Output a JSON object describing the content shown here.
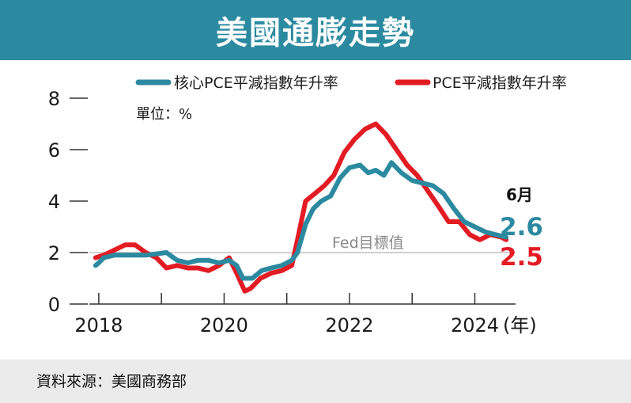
{
  "title": "美國通膨走勢",
  "source": "資料來源：美國商務部",
  "chart_data": {
    "type": "line",
    "unit_label": "單位：%",
    "ylim": [
      0,
      8
    ],
    "yticks": [
      "0",
      "2",
      "4",
      "6",
      "8"
    ],
    "xlim": [
      2017.85,
      2024.65
    ],
    "xtick_labels": [
      "2018",
      "2020",
      "2022",
      "2024"
    ],
    "x_unit_label": "(年)",
    "grid": false,
    "legend_position": "top",
    "reference_line": {
      "label": "Fed目標值",
      "value": 2
    },
    "latest_label": "6月",
    "series": [
      {
        "name": "核心PCE平減指數年升率",
        "color": "#2b8aa0",
        "end_label": "2.6",
        "points": [
          [
            2017.95,
            1.5
          ],
          [
            2018.0,
            1.6
          ],
          [
            2018.08,
            1.8
          ],
          [
            2018.25,
            1.9
          ],
          [
            2018.42,
            1.9
          ],
          [
            2018.58,
            1.9
          ],
          [
            2018.75,
            1.9
          ],
          [
            2018.92,
            1.95
          ],
          [
            2019.08,
            2.0
          ],
          [
            2019.25,
            1.7
          ],
          [
            2019.42,
            1.6
          ],
          [
            2019.58,
            1.7
          ],
          [
            2019.75,
            1.7
          ],
          [
            2019.92,
            1.6
          ],
          [
            2020.08,
            1.7
          ],
          [
            2020.2,
            1.5
          ],
          [
            2020.3,
            1.0
          ],
          [
            2020.45,
            1.0
          ],
          [
            2020.6,
            1.3
          ],
          [
            2020.75,
            1.4
          ],
          [
            2020.92,
            1.5
          ],
          [
            2021.08,
            1.7
          ],
          [
            2021.17,
            2.0
          ],
          [
            2021.3,
            3.1
          ],
          [
            2021.42,
            3.7
          ],
          [
            2021.55,
            4.0
          ],
          [
            2021.7,
            4.2
          ],
          [
            2021.85,
            4.9
          ],
          [
            2022.0,
            5.3
          ],
          [
            2022.17,
            5.4
          ],
          [
            2022.3,
            5.1
          ],
          [
            2022.42,
            5.2
          ],
          [
            2022.55,
            5.0
          ],
          [
            2022.67,
            5.5
          ],
          [
            2022.83,
            5.1
          ],
          [
            2023.0,
            4.8
          ],
          [
            2023.17,
            4.7
          ],
          [
            2023.33,
            4.6
          ],
          [
            2023.5,
            4.3
          ],
          [
            2023.67,
            3.7
          ],
          [
            2023.83,
            3.2
          ],
          [
            2024.0,
            3.0
          ],
          [
            2024.17,
            2.8
          ],
          [
            2024.33,
            2.7
          ],
          [
            2024.5,
            2.6
          ]
        ]
      },
      {
        "name": "PCE平減指數年升率",
        "color": "#e31b23",
        "end_label": "2.5",
        "points": [
          [
            2017.95,
            1.8
          ],
          [
            2018.08,
            1.9
          ],
          [
            2018.25,
            2.1
          ],
          [
            2018.42,
            2.3
          ],
          [
            2018.58,
            2.3
          ],
          [
            2018.75,
            2.0
          ],
          [
            2018.92,
            1.8
          ],
          [
            2019.08,
            1.4
          ],
          [
            2019.25,
            1.5
          ],
          [
            2019.42,
            1.4
          ],
          [
            2019.58,
            1.4
          ],
          [
            2019.75,
            1.3
          ],
          [
            2019.92,
            1.5
          ],
          [
            2020.08,
            1.8
          ],
          [
            2020.2,
            1.2
          ],
          [
            2020.33,
            0.5
          ],
          [
            2020.42,
            0.6
          ],
          [
            2020.58,
            1.0
          ],
          [
            2020.75,
            1.2
          ],
          [
            2020.92,
            1.3
          ],
          [
            2021.08,
            1.5
          ],
          [
            2021.17,
            2.5
          ],
          [
            2021.3,
            4.0
          ],
          [
            2021.45,
            4.3
          ],
          [
            2021.6,
            4.6
          ],
          [
            2021.75,
            5.0
          ],
          [
            2021.92,
            5.9
          ],
          [
            2022.08,
            6.4
          ],
          [
            2022.25,
            6.8
          ],
          [
            2022.42,
            7.0
          ],
          [
            2022.58,
            6.6
          ],
          [
            2022.75,
            6.0
          ],
          [
            2022.92,
            5.4
          ],
          [
            2023.08,
            5.0
          ],
          [
            2023.25,
            4.4
          ],
          [
            2023.42,
            3.8
          ],
          [
            2023.58,
            3.2
          ],
          [
            2023.75,
            3.2
          ],
          [
            2023.92,
            2.7
          ],
          [
            2024.08,
            2.5
          ],
          [
            2024.25,
            2.7
          ],
          [
            2024.42,
            2.6
          ],
          [
            2024.5,
            2.5
          ]
        ]
      }
    ]
  }
}
